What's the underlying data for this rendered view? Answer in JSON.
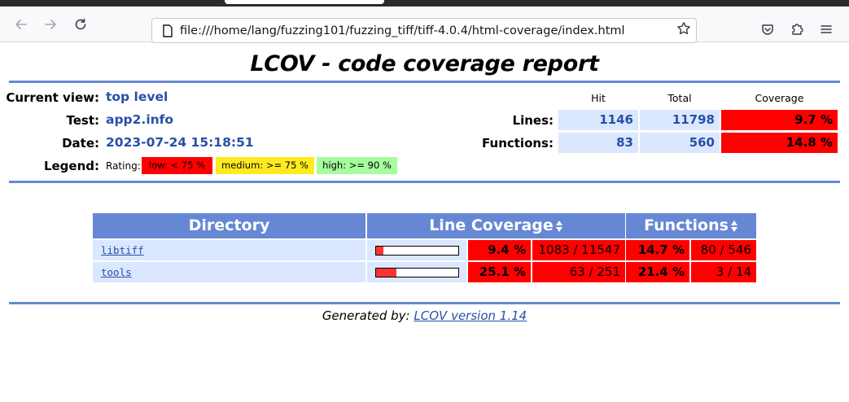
{
  "browser": {
    "url": "file:///home/lang/fuzzing101/fuzzing_tiff/tiff-4.0.4/html-coverage/index.html",
    "back_icon": "arrow-left-icon",
    "forward_icon": "arrow-right-icon",
    "reload_icon": "reload-icon",
    "bookmark_icon": "star-icon",
    "pocket_icon": "pocket-icon",
    "extensions_icon": "puzzle-icon",
    "menu_icon": "hamburger-menu-icon"
  },
  "report": {
    "title": "LCOV - code coverage report",
    "current_view_label": "Current view:",
    "current_view_value": "top level",
    "test_label": "Test:",
    "test_value": "app2.info",
    "date_label": "Date:",
    "date_value": "2023-07-24 15:18:51",
    "legend_label": "Legend:",
    "rating_label": "Rating:",
    "legend": {
      "low": "low: < 75 %",
      "medium": "medium: >= 75 %",
      "high": "high: >= 90 %"
    },
    "summary": {
      "col_hit": "Hit",
      "col_total": "Total",
      "col_coverage": "Coverage",
      "lines_label": "Lines:",
      "lines_hit": "1146",
      "lines_total": "11798",
      "lines_coverage": "9.7 %",
      "functions_label": "Functions:",
      "functions_hit": "83",
      "functions_total": "560",
      "functions_coverage": "14.8 %"
    }
  },
  "directory_table": {
    "col_directory": "Directory",
    "col_line_coverage": "Line Coverage",
    "col_functions": "Functions",
    "rows": [
      {
        "name": "libtiff",
        "line_pct": "9.4 %",
        "line_ratio": "1083 / 11547",
        "func_pct": "14.7 %",
        "func_ratio": "80 / 546",
        "line_fraction": 0.094
      },
      {
        "name": "tools",
        "line_pct": "25.1 %",
        "line_ratio": "63 / 251",
        "func_pct": "21.4 %",
        "func_ratio": "3 / 14",
        "line_fraction": 0.251
      }
    ]
  },
  "footer": {
    "prefix": "Generated by:",
    "link": "LCOV version 1.14"
  },
  "colors": {
    "accent": "#6688d4",
    "low": "#ff0000",
    "medium": "#ffea20",
    "high": "#a7fc9d",
    "value_text": "#284fa8"
  }
}
